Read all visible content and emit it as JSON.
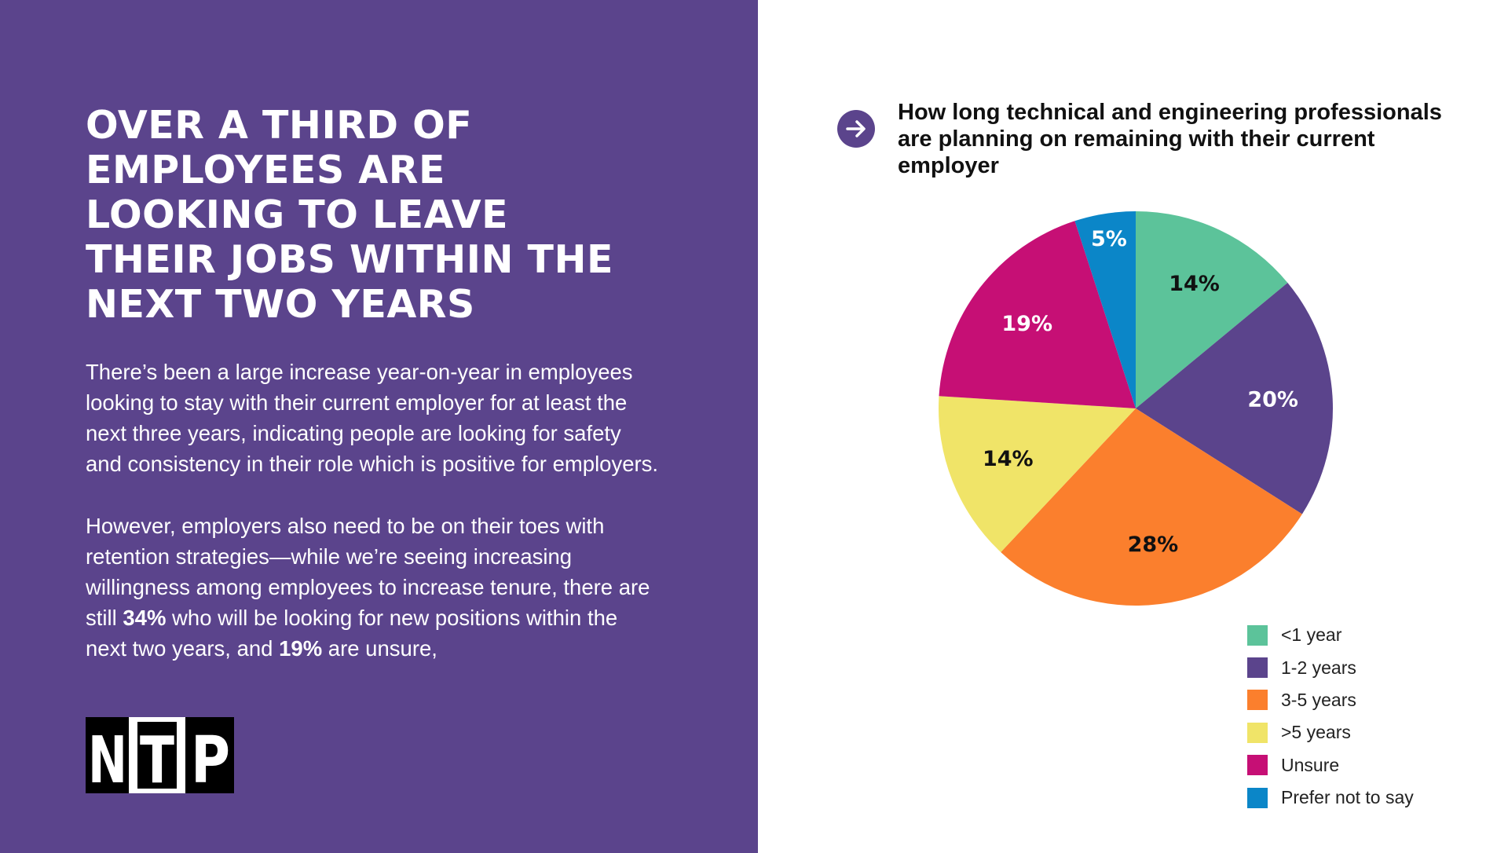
{
  "headline": {
    "lines": [
      "OVER A THIRD OF",
      "EMPLOYEES ARE",
      "LOOKING TO LEAVE",
      "THEIR JOBS WITHIN THE",
      "NEXT TWO YEARS"
    ]
  },
  "body": {
    "para1_lines": [
      "There’s been a large increase year-on-year in employees",
      "looking to stay with their current employer for at least the",
      "next three years, indicating people are looking for safety",
      "and consistency in their role which is positive for employers."
    ],
    "para2": {
      "line1": "However, employers also need to be on their toes with",
      "line2": "retention strategies—while we’re seeing increasing",
      "line3": "willingness among employees to increase tenure, there are",
      "line4_pre": "still ",
      "line4_bold": "34%",
      "line4_post": " who will be looking for new positions within the",
      "line5_pre": "next two years, and ",
      "line5_bold": "19%",
      "line5_post": " are unsure,"
    }
  },
  "logo": {
    "letters": [
      "N",
      "T",
      "P"
    ]
  },
  "icons": {
    "arrow": "arrow-right-circle-icon"
  },
  "colors": {
    "panel": "#5b448c",
    "lt1": "#5cc39a",
    "y12": "#5b448c",
    "y35": "#fb7f2d",
    "gt5": "#f0e468",
    "unsure": "#c60f75",
    "prefer": "#0b86c8"
  },
  "chart_data": {
    "type": "pie",
    "title": "How long technical and engineering professionals are planning on remaining with their current employer",
    "title_lines": [
      "How long technical and engineering professionals",
      "are planning on remaining with their current",
      "employer"
    ],
    "categories": [
      "<1 year",
      "1-2 years",
      "3-5 years",
      ">5 years",
      "Unsure",
      "Prefer not to say"
    ],
    "values": [
      14,
      20,
      28,
      14,
      19,
      5
    ],
    "data_labels": [
      "14%",
      "20%",
      "28%",
      "14%",
      "19%",
      "5%"
    ],
    "colors": [
      "#5cc39a",
      "#5b448c",
      "#fb7f2d",
      "#f0e468",
      "#c60f75",
      "#0b86c8"
    ],
    "label_colors": [
      "#111111",
      "#ffffff",
      "#111111",
      "#111111",
      "#ffffff",
      "#ffffff"
    ],
    "legend_position": "bottom-right",
    "start": "top, clockwise"
  }
}
